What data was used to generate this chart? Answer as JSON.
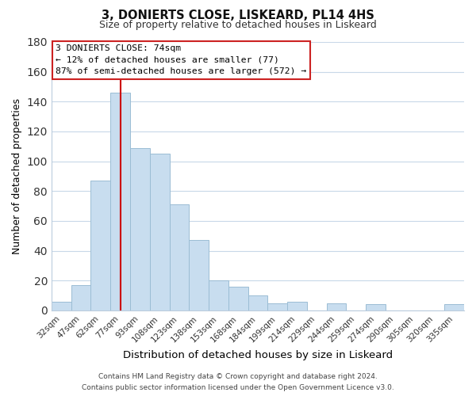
{
  "title1": "3, DONIERTS CLOSE, LISKEARD, PL14 4HS",
  "title2": "Size of property relative to detached houses in Liskeard",
  "xlabel": "Distribution of detached houses by size in Liskeard",
  "ylabel": "Number of detached properties",
  "bar_labels": [
    "32sqm",
    "47sqm",
    "62sqm",
    "77sqm",
    "93sqm",
    "108sqm",
    "123sqm",
    "138sqm",
    "153sqm",
    "168sqm",
    "184sqm",
    "199sqm",
    "214sqm",
    "229sqm",
    "244sqm",
    "259sqm",
    "274sqm",
    "290sqm",
    "305sqm",
    "320sqm",
    "335sqm"
  ],
  "bar_values": [
    6,
    17,
    87,
    146,
    109,
    105,
    71,
    47,
    20,
    16,
    10,
    5,
    6,
    0,
    5,
    0,
    4,
    0,
    0,
    0,
    4
  ],
  "bar_color": "#c8ddef",
  "bar_edge_color": "#9bbdd4",
  "vline_x": 3,
  "vline_color": "#cc0000",
  "ylim": [
    0,
    180
  ],
  "yticks": [
    0,
    20,
    40,
    60,
    80,
    100,
    120,
    140,
    160,
    180
  ],
  "annotation_title": "3 DONIERTS CLOSE: 74sqm",
  "annotation_line1": "← 12% of detached houses are smaller (77)",
  "annotation_line2": "87% of semi-detached houses are larger (572) →",
  "footer_line1": "Contains HM Land Registry data © Crown copyright and database right 2024.",
  "footer_line2": "Contains public sector information licensed under the Open Government Licence v3.0.",
  "background_color": "#ffffff",
  "grid_color": "#c8d8e8"
}
